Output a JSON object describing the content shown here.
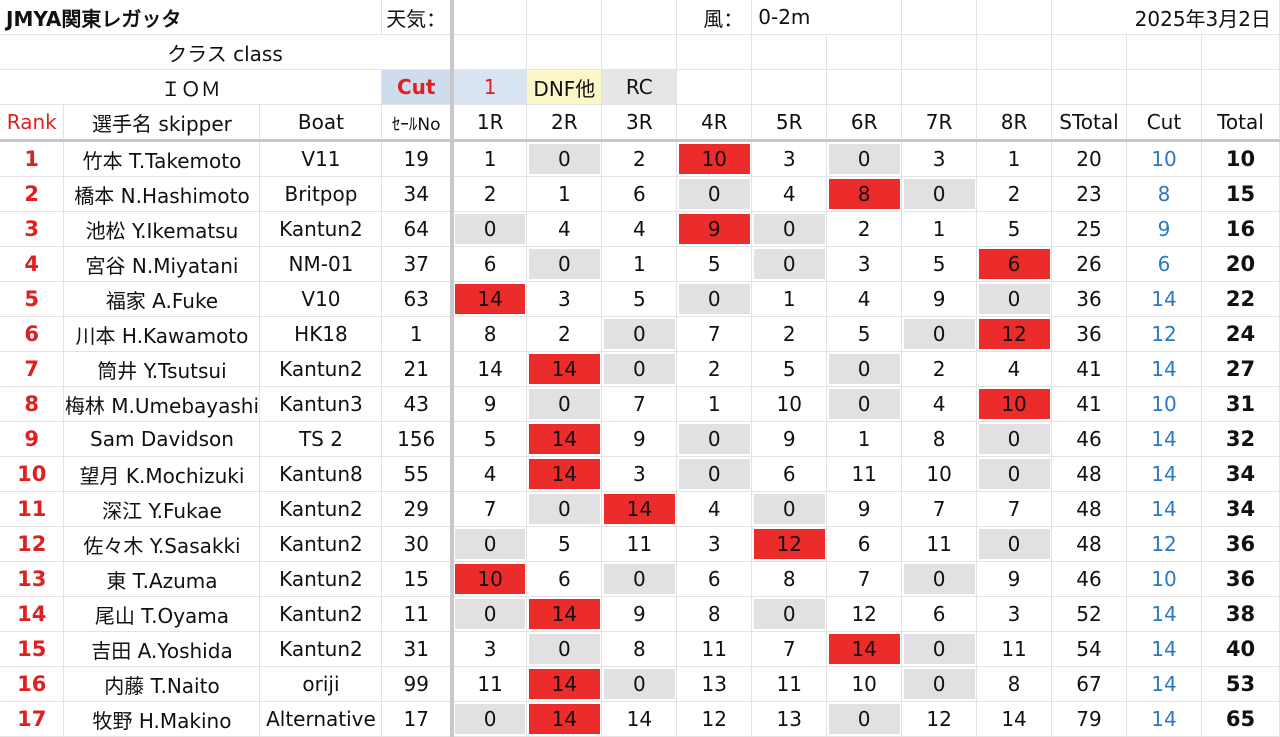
{
  "meta": {
    "event": "JMYA関東レガッタ",
    "weather_label": "天気：",
    "wind_label": "風：",
    "wind_value": "0-2m",
    "date": "2025年3月2日",
    "class_label": "クラス class",
    "class_value": "ＩＯＭ"
  },
  "legend": {
    "cut": "Cut",
    "one": "1",
    "dnf": "DNF他",
    "rc": "RC"
  },
  "headers": {
    "rank": "Rank",
    "skipper": "選手名 skipper",
    "boat": "Boat",
    "sail": "ｾｰﾙNo",
    "races": [
      "1R",
      "2R",
      "3R",
      "4R",
      "5R",
      "6R",
      "7R",
      "8R"
    ],
    "stotal": "STotal",
    "cut": "Cut",
    "total": "Total"
  },
  "rows": [
    {
      "rank": "1",
      "skipper": "竹本 T.Takemoto",
      "boat": "V11",
      "sail": "19",
      "races": [
        "1",
        "0",
        "2",
        "10",
        "3",
        "0",
        "3",
        "1"
      ],
      "marks": [
        "",
        "g",
        "",
        "r",
        "",
        "g",
        "",
        ""
      ],
      "stotal": "20",
      "cut": "10",
      "total": "10"
    },
    {
      "rank": "2",
      "skipper": "橋本 N.Hashimoto",
      "boat": "Britpop",
      "sail": "34",
      "races": [
        "2",
        "1",
        "6",
        "0",
        "4",
        "8",
        "0",
        "2"
      ],
      "marks": [
        "",
        "",
        "",
        "g",
        "",
        "r",
        "g",
        ""
      ],
      "stotal": "23",
      "cut": "8",
      "total": "15"
    },
    {
      "rank": "3",
      "skipper": "池松 Y.Ikematsu",
      "boat": "Kantun2",
      "sail": "64",
      "races": [
        "0",
        "4",
        "4",
        "9",
        "0",
        "2",
        "1",
        "5"
      ],
      "marks": [
        "g",
        "",
        "",
        "r",
        "g",
        "",
        "",
        ""
      ],
      "stotal": "25",
      "cut": "9",
      "total": "16"
    },
    {
      "rank": "4",
      "skipper": "宮谷 N.Miyatani",
      "boat": "NM-01",
      "sail": "37",
      "races": [
        "6",
        "0",
        "1",
        "5",
        "0",
        "3",
        "5",
        "6"
      ],
      "marks": [
        "",
        "g",
        "",
        "",
        "g",
        "",
        "",
        "r"
      ],
      "stotal": "26",
      "cut": "6",
      "total": "20"
    },
    {
      "rank": "5",
      "skipper": "福家 A.Fuke",
      "boat": "V10",
      "sail": "63",
      "races": [
        "14",
        "3",
        "5",
        "0",
        "1",
        "4",
        "9",
        "0"
      ],
      "marks": [
        "r",
        "",
        "",
        "g",
        "",
        "",
        "",
        "g"
      ],
      "stotal": "36",
      "cut": "14",
      "total": "22"
    },
    {
      "rank": "6",
      "skipper": "川本 H.Kawamoto",
      "boat": "HK18",
      "sail": "1",
      "races": [
        "8",
        "2",
        "0",
        "7",
        "2",
        "5",
        "0",
        "12"
      ],
      "marks": [
        "",
        "",
        "g",
        "",
        "",
        "",
        "g",
        "r"
      ],
      "stotal": "36",
      "cut": "12",
      "total": "24"
    },
    {
      "rank": "7",
      "skipper": "筒井 Y.Tsutsui",
      "boat": "Kantun2",
      "sail": "21",
      "races": [
        "14",
        "14",
        "0",
        "2",
        "5",
        "0",
        "2",
        "4"
      ],
      "marks": [
        "",
        "r",
        "g",
        "",
        "",
        "g",
        "",
        ""
      ],
      "stotal": "41",
      "cut": "14",
      "total": "27"
    },
    {
      "rank": "8",
      "skipper": "梅林 M.Umebayashi",
      "boat": "Kantun3",
      "sail": "43",
      "races": [
        "9",
        "0",
        "7",
        "1",
        "10",
        "0",
        "4",
        "10"
      ],
      "marks": [
        "",
        "g",
        "",
        "",
        "",
        "g",
        "",
        "r"
      ],
      "stotal": "41",
      "cut": "10",
      "total": "31"
    },
    {
      "rank": "9",
      "skipper": "Sam Davidson",
      "boat": "TS 2",
      "sail": "156",
      "races": [
        "5",
        "14",
        "9",
        "0",
        "9",
        "1",
        "8",
        "0"
      ],
      "marks": [
        "",
        "r",
        "",
        "g",
        "",
        "",
        "",
        "g"
      ],
      "stotal": "46",
      "cut": "14",
      "total": "32"
    },
    {
      "rank": "10",
      "skipper": "望月 K.Mochizuki",
      "boat": "Kantun8",
      "sail": "55",
      "races": [
        "4",
        "14",
        "3",
        "0",
        "6",
        "11",
        "10",
        "0"
      ],
      "marks": [
        "",
        "r",
        "",
        "g",
        "",
        "",
        "",
        "g"
      ],
      "stotal": "48",
      "cut": "14",
      "total": "34"
    },
    {
      "rank": "11",
      "skipper": "深江 Y.Fukae",
      "boat": "Kantun2",
      "sail": "29",
      "races": [
        "7",
        "0",
        "14",
        "4",
        "0",
        "9",
        "7",
        "7"
      ],
      "marks": [
        "",
        "g",
        "r",
        "",
        "g",
        "",
        "",
        ""
      ],
      "stotal": "48",
      "cut": "14",
      "total": "34"
    },
    {
      "rank": "12",
      "skipper": "佐々木 Y.Sasakki",
      "boat": "Kantun2",
      "sail": "30",
      "races": [
        "0",
        "5",
        "11",
        "3",
        "12",
        "6",
        "11",
        "0"
      ],
      "marks": [
        "g",
        "",
        "",
        "",
        "r",
        "",
        "",
        "g"
      ],
      "stotal": "48",
      "cut": "12",
      "total": "36"
    },
    {
      "rank": "13",
      "skipper": "東 T.Azuma",
      "boat": "Kantun2",
      "sail": "15",
      "races": [
        "10",
        "6",
        "0",
        "6",
        "8",
        "7",
        "0",
        "9"
      ],
      "marks": [
        "r",
        "",
        "g",
        "",
        "",
        "",
        "g",
        ""
      ],
      "stotal": "46",
      "cut": "10",
      "total": "36"
    },
    {
      "rank": "14",
      "skipper": "尾山 T.Oyama",
      "boat": "Kantun2",
      "sail": "11",
      "races": [
        "0",
        "14",
        "9",
        "8",
        "0",
        "12",
        "6",
        "3"
      ],
      "marks": [
        "g",
        "r",
        "",
        "",
        "g",
        "",
        "",
        ""
      ],
      "stotal": "52",
      "cut": "14",
      "total": "38"
    },
    {
      "rank": "15",
      "skipper": "吉田 A.Yoshida",
      "boat": "Kantun2",
      "sail": "31",
      "races": [
        "3",
        "0",
        "8",
        "11",
        "7",
        "14",
        "0",
        "11"
      ],
      "marks": [
        "",
        "g",
        "",
        "",
        "",
        "r",
        "g",
        ""
      ],
      "stotal": "54",
      "cut": "14",
      "total": "40"
    },
    {
      "rank": "16",
      "skipper": "内藤 T.Naito",
      "boat": "oriji",
      "sail": "99",
      "races": [
        "11",
        "14",
        "0",
        "13",
        "11",
        "10",
        "0",
        "8"
      ],
      "marks": [
        "",
        "r",
        "g",
        "",
        "",
        "",
        "g",
        ""
      ],
      "stotal": "67",
      "cut": "14",
      "total": "53"
    },
    {
      "rank": "17",
      "skipper": "牧野 H.Makino",
      "boat": "Alternative",
      "sail": "17",
      "races": [
        "0",
        "14",
        "14",
        "12",
        "13",
        "0",
        "12",
        "14"
      ],
      "marks": [
        "g",
        "r",
        "",
        "",
        "",
        "g",
        "",
        ""
      ],
      "stotal": "79",
      "cut": "14",
      "total": "65"
    }
  ]
}
